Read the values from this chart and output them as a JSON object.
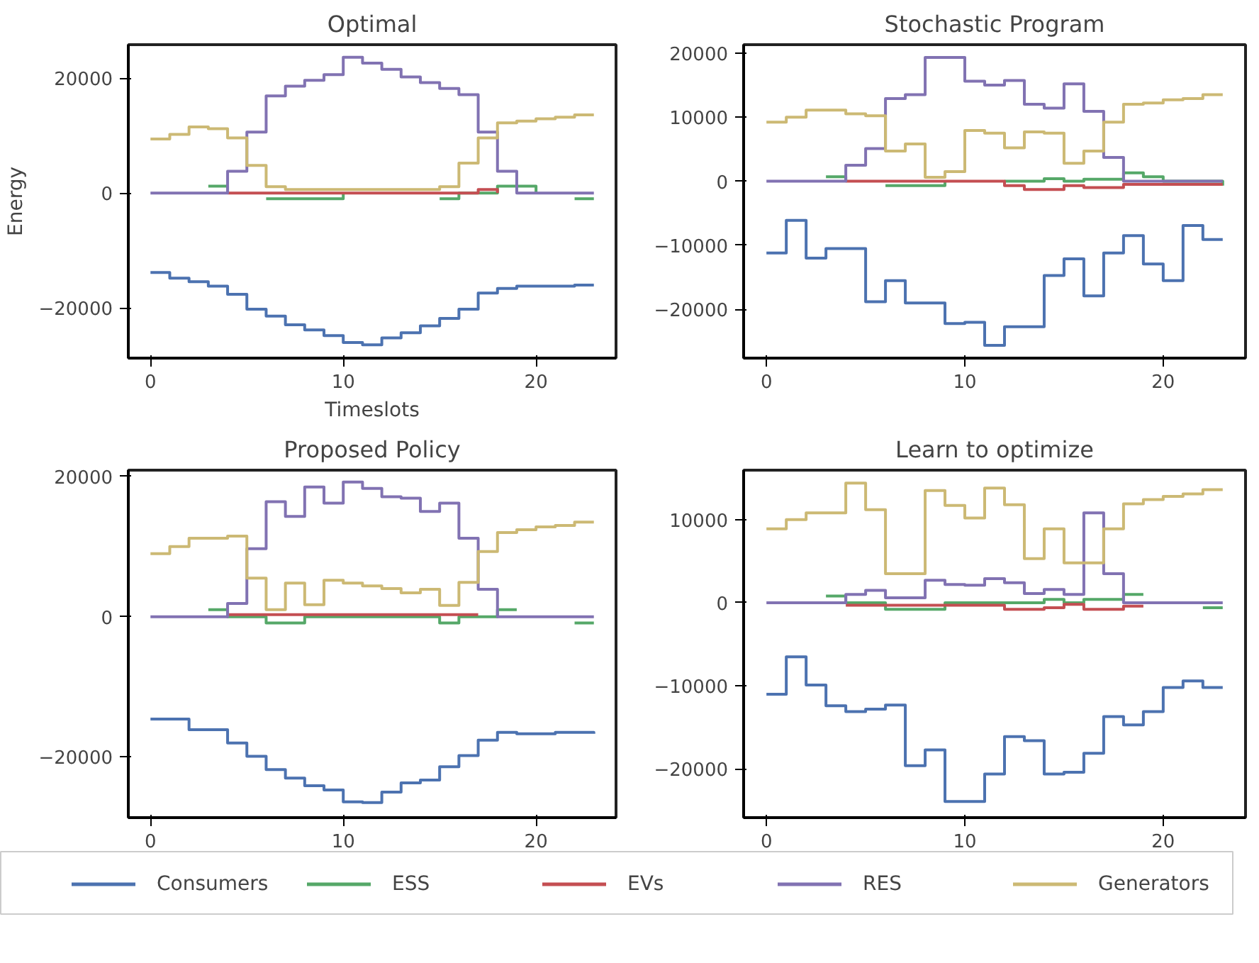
{
  "chart_data": [
    {
      "type": "step",
      "title": "Optimal",
      "xlabel": "Timeslots",
      "ylabel": "Energy",
      "x": [
        0,
        1,
        2,
        3,
        4,
        5,
        6,
        7,
        8,
        9,
        10,
        11,
        12,
        13,
        14,
        15,
        16,
        17,
        18,
        19,
        20,
        21,
        22,
        23
      ],
      "xlim": [
        -1.15,
        24.15
      ],
      "xticks": [
        0,
        10,
        20
      ],
      "ylim": [
        -28700,
        25800
      ],
      "yticks": [
        -20000,
        0,
        20000
      ],
      "grid": false,
      "legend": "bottom",
      "series": [
        {
          "name": "Consumers",
          "color": "#4c72b0",
          "values": [
            -13800,
            -14800,
            -15400,
            -16200,
            -17600,
            -20200,
            -21400,
            -22900,
            -23800,
            -24800,
            -26000,
            -26400,
            -25200,
            -24300,
            -23100,
            -21800,
            -20200,
            -17400,
            -16600,
            -16200,
            -16200,
            -16200,
            -16000,
            -16000
          ]
        },
        {
          "name": "ESS",
          "color": "#55a868",
          "values": [
            null,
            null,
            null,
            1200,
            0,
            null,
            -1000,
            -1000,
            -1000,
            -1000,
            0,
            null,
            null,
            null,
            null,
            -1000,
            0,
            0,
            1200,
            1200,
            0,
            null,
            -1000,
            -1000
          ]
        },
        {
          "name": "EVs",
          "color": "#c44e52",
          "values": [
            null,
            null,
            null,
            null,
            0,
            0,
            0,
            0,
            0,
            0,
            0,
            0,
            0,
            0,
            0,
            0,
            0,
            600,
            0,
            null,
            null,
            null,
            null,
            null
          ]
        },
        {
          "name": "RES",
          "color": "#8172b2",
          "values": [
            0,
            0,
            0,
            0,
            3800,
            10600,
            16900,
            18600,
            19600,
            20600,
            23600,
            22600,
            21500,
            20200,
            19200,
            18200,
            17100,
            10600,
            3800,
            0,
            0,
            0,
            0,
            0
          ]
        },
        {
          "name": "Generators",
          "color": "#ccb974",
          "values": [
            9400,
            10200,
            11500,
            11200,
            9600,
            4800,
            1100,
            600,
            600,
            600,
            600,
            600,
            600,
            600,
            600,
            1100,
            5200,
            9600,
            12200,
            12500,
            12900,
            13200,
            13600,
            13600
          ]
        }
      ]
    },
    {
      "type": "step",
      "title": "Stochastic Program",
      "x": [
        0,
        1,
        2,
        3,
        4,
        5,
        6,
        7,
        8,
        9,
        10,
        11,
        12,
        13,
        14,
        15,
        16,
        17,
        18,
        19,
        20,
        21,
        22,
        23
      ],
      "xlim": [
        -1.15,
        24.15
      ],
      "xticks": [
        0,
        10,
        20
      ],
      "ylim": [
        -27600,
        21300
      ],
      "yticks": [
        -20000,
        -10000,
        0,
        10000,
        20000
      ],
      "grid": false,
      "series": [
        {
          "color": "#4c72b0",
          "values": [
            -11200,
            -6100,
            -12000,
            -10500,
            -10500,
            -18800,
            -15500,
            -19000,
            -19000,
            -22200,
            -22000,
            -25600,
            -22700,
            -22700,
            -14700,
            -12100,
            -17900,
            -11200,
            -8500,
            -12900,
            -15500,
            -6900,
            -9100,
            -9100
          ]
        },
        {
          "color": "#55a868",
          "values": [
            null,
            null,
            null,
            700,
            0,
            null,
            -700,
            -700,
            -700,
            0,
            null,
            null,
            0,
            0,
            400,
            0,
            300,
            300,
            1300,
            700,
            0,
            0,
            0,
            -700
          ]
        },
        {
          "color": "#c44e52",
          "values": [
            null,
            null,
            null,
            null,
            0,
            0,
            0,
            0,
            0,
            0,
            0,
            0,
            -700,
            -1300,
            -1300,
            -700,
            -1000,
            -1000,
            -500,
            -500,
            -500,
            -500,
            -500,
            -500
          ]
        },
        {
          "color": "#8172b2",
          "values": [
            0,
            0,
            0,
            0,
            2500,
            5100,
            12900,
            13500,
            19300,
            19300,
            15600,
            15000,
            15700,
            12000,
            11400,
            15200,
            10900,
            3700,
            0,
            0,
            0,
            0,
            0,
            0
          ]
        },
        {
          "color": "#ccb974",
          "values": [
            9200,
            10000,
            11100,
            11100,
            10500,
            10200,
            4700,
            5800,
            600,
            1500,
            7900,
            7500,
            5200,
            7700,
            7500,
            2800,
            4700,
            9200,
            12000,
            12200,
            12700,
            12900,
            13500,
            13500
          ]
        }
      ]
    },
    {
      "type": "step",
      "title": "Proposed Policy",
      "x": [
        0,
        1,
        2,
        3,
        4,
        5,
        6,
        7,
        8,
        9,
        10,
        11,
        12,
        13,
        14,
        15,
        16,
        17,
        18,
        19,
        20,
        21,
        22,
        23
      ],
      "xlim": [
        -1.15,
        24.15
      ],
      "xticks": [
        0,
        10,
        20
      ],
      "ylim": [
        -28650,
        20900
      ],
      "yticks": [
        -20000,
        0,
        20000
      ],
      "grid": false,
      "series": [
        {
          "color": "#4c72b0",
          "values": [
            -14600,
            -14600,
            -16100,
            -16100,
            -18000,
            -19900,
            -21800,
            -23000,
            -24100,
            -24700,
            -26400,
            -26500,
            -25000,
            -23700,
            -23300,
            -21400,
            -19800,
            -17600,
            -16500,
            -16700,
            -16700,
            -16500,
            -16500,
            -16700
          ]
        },
        {
          "color": "#55a868",
          "values": [
            null,
            null,
            null,
            1000,
            0,
            0,
            -900,
            -900,
            0,
            0,
            0,
            0,
            0,
            0,
            0,
            -900,
            0,
            0,
            1000,
            1000,
            null,
            null,
            -900,
            -900
          ]
        },
        {
          "color": "#c44e52",
          "values": [
            null,
            null,
            null,
            null,
            300,
            300,
            300,
            300,
            300,
            300,
            300,
            300,
            300,
            300,
            300,
            300,
            300,
            300,
            null,
            null,
            null,
            null,
            null,
            null
          ]
        },
        {
          "color": "#8172b2",
          "values": [
            0,
            0,
            0,
            0,
            1900,
            9700,
            16400,
            14300,
            18500,
            16200,
            19200,
            18300,
            17100,
            16900,
            15000,
            16200,
            11200,
            3900,
            0,
            0,
            0,
            0,
            0,
            0
          ]
        },
        {
          "color": "#ccb974",
          "values": [
            9000,
            10000,
            11200,
            11200,
            11500,
            5500,
            1000,
            4800,
            1700,
            5200,
            4800,
            4400,
            4000,
            3400,
            3900,
            1600,
            4900,
            9300,
            12000,
            12400,
            12800,
            13000,
            13500,
            13500
          ]
        }
      ]
    },
    {
      "type": "step",
      "title": "Learn to optimize",
      "x": [
        0,
        1,
        2,
        3,
        4,
        5,
        6,
        7,
        8,
        9,
        10,
        11,
        12,
        13,
        14,
        15,
        16,
        17,
        18,
        19,
        20,
        21,
        22,
        23
      ],
      "xlim": [
        -1.15,
        24.15
      ],
      "xticks": [
        0,
        10,
        20
      ],
      "ylim": [
        -25850,
        15950
      ],
      "yticks": [
        -20000,
        -10000,
        0,
        10000
      ],
      "grid": false,
      "series": [
        {
          "color": "#4c72b0",
          "values": [
            -11000,
            -6500,
            -9900,
            -12400,
            -13100,
            -12800,
            -12300,
            -19600,
            -17700,
            -23900,
            -23900,
            -20600,
            -16100,
            -16600,
            -20600,
            -20400,
            -18100,
            -13700,
            -14700,
            -13100,
            -10200,
            -9400,
            -10200,
            -10200
          ]
        },
        {
          "color": "#55a868",
          "values": [
            null,
            null,
            null,
            800,
            0,
            0,
            -800,
            -800,
            -800,
            0,
            0,
            0,
            0,
            0,
            400,
            0,
            400,
            400,
            1000,
            1000,
            null,
            null,
            -600,
            -600
          ]
        },
        {
          "color": "#c44e52",
          "values": [
            null,
            null,
            null,
            null,
            -300,
            -300,
            -300,
            -300,
            -300,
            -300,
            -300,
            -300,
            -800,
            -800,
            -600,
            -200,
            -800,
            -800,
            -400,
            -400,
            null,
            null,
            null,
            null
          ]
        },
        {
          "color": "#8172b2",
          "values": [
            0,
            0,
            0,
            0,
            1000,
            1500,
            600,
            600,
            2700,
            2200,
            2100,
            2900,
            2400,
            1100,
            1600,
            1000,
            10800,
            3500,
            0,
            0,
            0,
            0,
            0,
            0
          ]
        },
        {
          "color": "#ccb974",
          "values": [
            8900,
            10000,
            10800,
            10800,
            14400,
            11200,
            3500,
            3500,
            13500,
            11700,
            10200,
            13800,
            11800,
            5300,
            8900,
            4800,
            4800,
            8900,
            11900,
            12400,
            12800,
            13100,
            13600,
            13600
          ]
        }
      ]
    }
  ]
}
